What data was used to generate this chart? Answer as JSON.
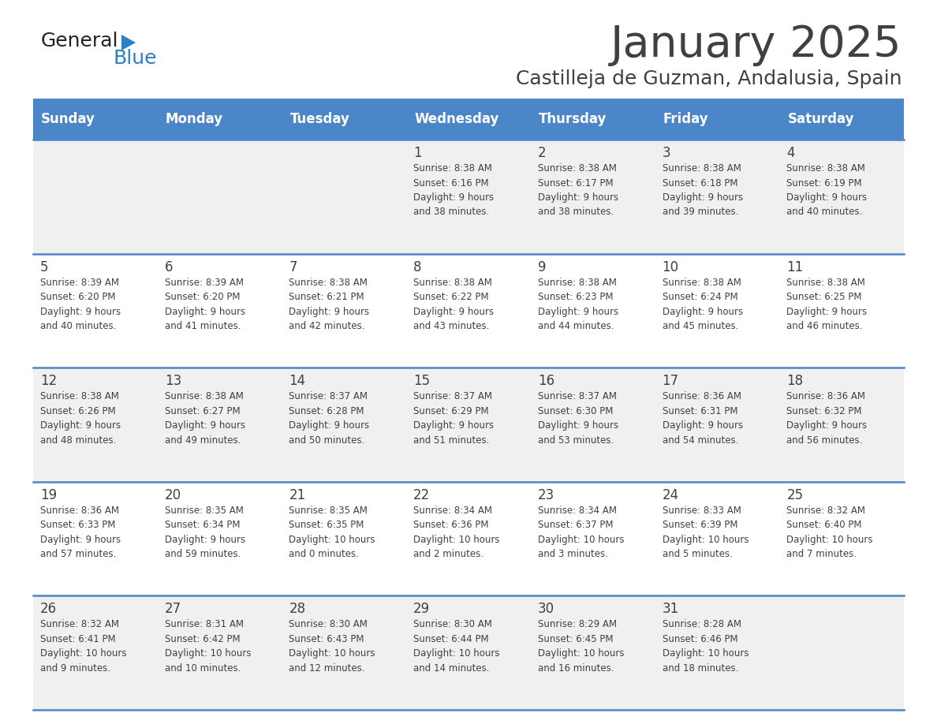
{
  "title": "January 2025",
  "subtitle": "Castilleja de Guzman, Andalusia, Spain",
  "header_bg": "#4a86c8",
  "header_text_color": "#ffffff",
  "row_bg_odd": "#f0f0f0",
  "row_bg_even": "#ffffff",
  "border_color": "#4a86c8",
  "text_color": "#404040",
  "days_of_week": [
    "Sunday",
    "Monday",
    "Tuesday",
    "Wednesday",
    "Thursday",
    "Friday",
    "Saturday"
  ],
  "weeks": [
    [
      {
        "day": "",
        "info": ""
      },
      {
        "day": "",
        "info": ""
      },
      {
        "day": "",
        "info": ""
      },
      {
        "day": "1",
        "info": "Sunrise: 8:38 AM\nSunset: 6:16 PM\nDaylight: 9 hours\nand 38 minutes."
      },
      {
        "day": "2",
        "info": "Sunrise: 8:38 AM\nSunset: 6:17 PM\nDaylight: 9 hours\nand 38 minutes."
      },
      {
        "day": "3",
        "info": "Sunrise: 8:38 AM\nSunset: 6:18 PM\nDaylight: 9 hours\nand 39 minutes."
      },
      {
        "day": "4",
        "info": "Sunrise: 8:38 AM\nSunset: 6:19 PM\nDaylight: 9 hours\nand 40 minutes."
      }
    ],
    [
      {
        "day": "5",
        "info": "Sunrise: 8:39 AM\nSunset: 6:20 PM\nDaylight: 9 hours\nand 40 minutes."
      },
      {
        "day": "6",
        "info": "Sunrise: 8:39 AM\nSunset: 6:20 PM\nDaylight: 9 hours\nand 41 minutes."
      },
      {
        "day": "7",
        "info": "Sunrise: 8:38 AM\nSunset: 6:21 PM\nDaylight: 9 hours\nand 42 minutes."
      },
      {
        "day": "8",
        "info": "Sunrise: 8:38 AM\nSunset: 6:22 PM\nDaylight: 9 hours\nand 43 minutes."
      },
      {
        "day": "9",
        "info": "Sunrise: 8:38 AM\nSunset: 6:23 PM\nDaylight: 9 hours\nand 44 minutes."
      },
      {
        "day": "10",
        "info": "Sunrise: 8:38 AM\nSunset: 6:24 PM\nDaylight: 9 hours\nand 45 minutes."
      },
      {
        "day": "11",
        "info": "Sunrise: 8:38 AM\nSunset: 6:25 PM\nDaylight: 9 hours\nand 46 minutes."
      }
    ],
    [
      {
        "day": "12",
        "info": "Sunrise: 8:38 AM\nSunset: 6:26 PM\nDaylight: 9 hours\nand 48 minutes."
      },
      {
        "day": "13",
        "info": "Sunrise: 8:38 AM\nSunset: 6:27 PM\nDaylight: 9 hours\nand 49 minutes."
      },
      {
        "day": "14",
        "info": "Sunrise: 8:37 AM\nSunset: 6:28 PM\nDaylight: 9 hours\nand 50 minutes."
      },
      {
        "day": "15",
        "info": "Sunrise: 8:37 AM\nSunset: 6:29 PM\nDaylight: 9 hours\nand 51 minutes."
      },
      {
        "day": "16",
        "info": "Sunrise: 8:37 AM\nSunset: 6:30 PM\nDaylight: 9 hours\nand 53 minutes."
      },
      {
        "day": "17",
        "info": "Sunrise: 8:36 AM\nSunset: 6:31 PM\nDaylight: 9 hours\nand 54 minutes."
      },
      {
        "day": "18",
        "info": "Sunrise: 8:36 AM\nSunset: 6:32 PM\nDaylight: 9 hours\nand 56 minutes."
      }
    ],
    [
      {
        "day": "19",
        "info": "Sunrise: 8:36 AM\nSunset: 6:33 PM\nDaylight: 9 hours\nand 57 minutes."
      },
      {
        "day": "20",
        "info": "Sunrise: 8:35 AM\nSunset: 6:34 PM\nDaylight: 9 hours\nand 59 minutes."
      },
      {
        "day": "21",
        "info": "Sunrise: 8:35 AM\nSunset: 6:35 PM\nDaylight: 10 hours\nand 0 minutes."
      },
      {
        "day": "22",
        "info": "Sunrise: 8:34 AM\nSunset: 6:36 PM\nDaylight: 10 hours\nand 2 minutes."
      },
      {
        "day": "23",
        "info": "Sunrise: 8:34 AM\nSunset: 6:37 PM\nDaylight: 10 hours\nand 3 minutes."
      },
      {
        "day": "24",
        "info": "Sunrise: 8:33 AM\nSunset: 6:39 PM\nDaylight: 10 hours\nand 5 minutes."
      },
      {
        "day": "25",
        "info": "Sunrise: 8:32 AM\nSunset: 6:40 PM\nDaylight: 10 hours\nand 7 minutes."
      }
    ],
    [
      {
        "day": "26",
        "info": "Sunrise: 8:32 AM\nSunset: 6:41 PM\nDaylight: 10 hours\nand 9 minutes."
      },
      {
        "day": "27",
        "info": "Sunrise: 8:31 AM\nSunset: 6:42 PM\nDaylight: 10 hours\nand 10 minutes."
      },
      {
        "day": "28",
        "info": "Sunrise: 8:30 AM\nSunset: 6:43 PM\nDaylight: 10 hours\nand 12 minutes."
      },
      {
        "day": "29",
        "info": "Sunrise: 8:30 AM\nSunset: 6:44 PM\nDaylight: 10 hours\nand 14 minutes."
      },
      {
        "day": "30",
        "info": "Sunrise: 8:29 AM\nSunset: 6:45 PM\nDaylight: 10 hours\nand 16 minutes."
      },
      {
        "day": "31",
        "info": "Sunrise: 8:28 AM\nSunset: 6:46 PM\nDaylight: 10 hours\nand 18 minutes."
      },
      {
        "day": "",
        "info": ""
      }
    ]
  ],
  "logo_general_color": "#222222",
  "logo_blue_color": "#2e7fc1",
  "fig_width": 11.88,
  "fig_height": 9.18,
  "dpi": 100
}
